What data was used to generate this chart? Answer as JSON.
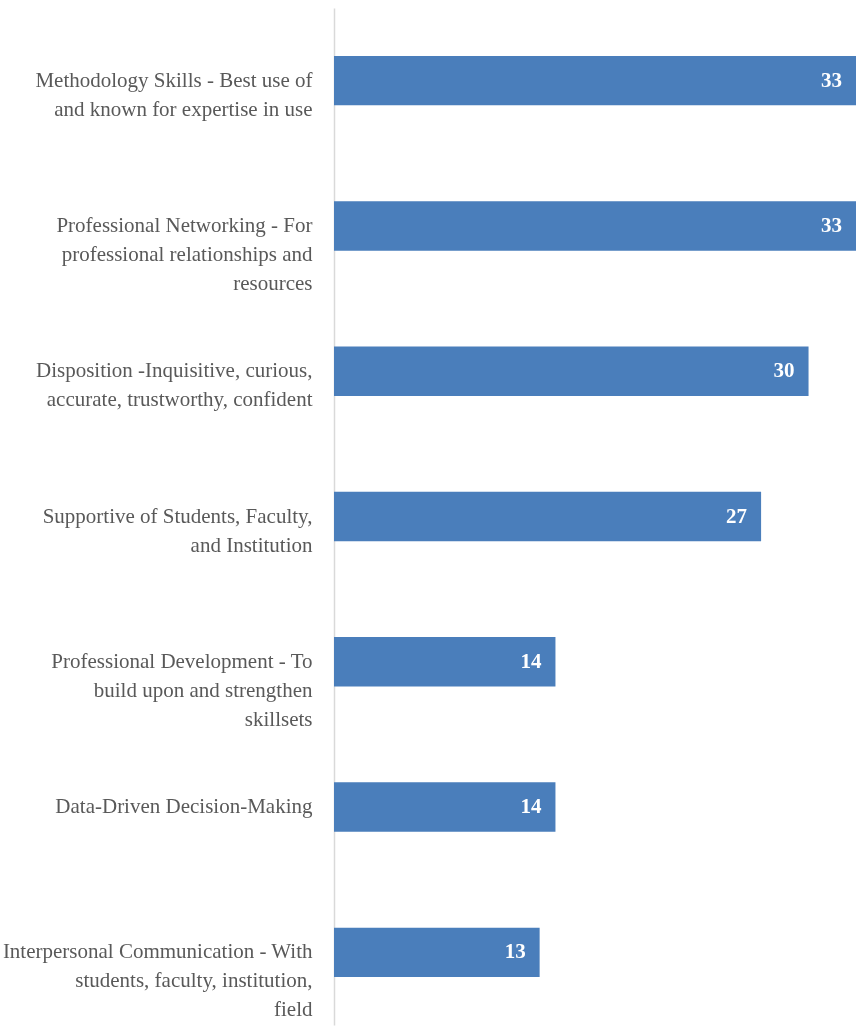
{
  "chart_data": {
    "type": "bar",
    "orientation": "horizontal",
    "categories": [
      "Methodology Skills - Best use of and known for expertise in use",
      "Professional Networking - For professional relationships and resources",
      "Disposition -Inquisitive, curious, accurate, trustworthy, confident",
      "Supportive of Students, Faculty, and Institution",
      "Professional Development - To build upon and strengthen skillsets",
      "Data-Driven Decision-Making",
      "Interpersonal Communication - With students, faculty, institution, field"
    ],
    "values": [
      33,
      33,
      30,
      27,
      14,
      14,
      13
    ],
    "color": "#4a7ebb",
    "data_labels": true
  }
}
